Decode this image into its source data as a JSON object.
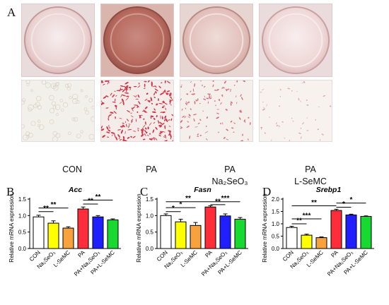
{
  "panel_labels": {
    "a": "A",
    "b": "B",
    "c": "C",
    "d": "D"
  },
  "group_labels": [
    {
      "line1": "CON",
      "line2": ""
    },
    {
      "line1": "PA",
      "line2": ""
    },
    {
      "line1": "PA",
      "line2": "Na₂SeO₃"
    },
    {
      "line1": "PA",
      "line2": "L-SeMC"
    }
  ],
  "colors": {
    "bar_fills": [
      "#ffffff",
      "#ffff00",
      "#f7a23c",
      "#ff2d3a",
      "#1f1fff",
      "#17d92f"
    ]
  },
  "chart_data": [
    {
      "type": "bar",
      "panel": "B",
      "title": "Acc",
      "ylabel": "Relative mRNA expression",
      "ylim": [
        0,
        1.5
      ],
      "yticks": [
        "0.0",
        "0.5",
        "1.0",
        "1.5"
      ],
      "categories": [
        "CON",
        "Na₂SeO₃",
        "L-SeMC",
        "PA",
        "PA+Na₂SeO₃",
        "PA+L-SeMC"
      ],
      "values": [
        0.96,
        0.77,
        0.62,
        1.2,
        0.96,
        0.87
      ],
      "errors": [
        0.05,
        0.07,
        0.04,
        0.06,
        0.04,
        0.03
      ],
      "significance": [
        {
          "from": 0,
          "to": 1,
          "label": "**",
          "y": 1.12
        },
        {
          "from": 0,
          "to": 2,
          "label": "**",
          "y": 1.23
        },
        {
          "from": 3,
          "to": 4,
          "label": "**",
          "y": 1.35
        },
        {
          "from": 3,
          "to": 5,
          "label": "**",
          "y": 1.47
        }
      ]
    },
    {
      "type": "bar",
      "panel": "C",
      "title": "Fasn",
      "ylabel": "Relative mRNA expression",
      "ylim": [
        0,
        1.5
      ],
      "yticks": [
        "0.0",
        "0.5",
        "1.0",
        "1.5"
      ],
      "categories": [
        "CON",
        "Na₂SeO₃",
        "L-SeMC",
        "PA",
        "PA+Na₂SeO₃",
        "PA+L-SeMC"
      ],
      "values": [
        1.0,
        0.81,
        0.7,
        1.26,
        0.99,
        0.89
      ],
      "errors": [
        0.05,
        0.08,
        0.09,
        0.04,
        0.06,
        0.05
      ],
      "significance": [
        {
          "from": 0,
          "to": 1,
          "label": "*",
          "y": 1.12
        },
        {
          "from": 0,
          "to": 2,
          "label": "*",
          "y": 1.24
        },
        {
          "from": 0,
          "to": 3,
          "label": "**",
          "y": 1.42
        },
        {
          "from": 3,
          "to": 4,
          "label": "**",
          "y": 1.33
        },
        {
          "from": 3,
          "to": 5,
          "label": "***",
          "y": 1.42
        }
      ]
    },
    {
      "type": "bar",
      "panel": "D",
      "title": "Srebp1",
      "ylabel": "Relative mRNA expression",
      "ylim": [
        0,
        2.0
      ],
      "yticks": [
        "0.0",
        "0.5",
        "1.0",
        "1.5",
        "2.0"
      ],
      "categories": [
        "CON",
        "Na₂SeO₃",
        "L-SeMC",
        "PA",
        "PA+Na₂SeO₃",
        "PA+L-SeMC"
      ],
      "values": [
        0.85,
        0.54,
        0.44,
        1.54,
        1.36,
        1.3
      ],
      "errors": [
        0.05,
        0.04,
        0.03,
        0.05,
        0.03,
        0.02
      ],
      "significance": [
        {
          "from": 0,
          "to": 1,
          "label": "**",
          "y": 1.0
        },
        {
          "from": 0,
          "to": 2,
          "label": "***",
          "y": 1.2
        },
        {
          "from": 0,
          "to": 3,
          "label": "**",
          "y": 1.73
        },
        {
          "from": 3,
          "to": 4,
          "label": "*",
          "y": 1.67
        },
        {
          "from": 3,
          "to": 5,
          "label": "*",
          "y": 1.84
        }
      ]
    }
  ]
}
